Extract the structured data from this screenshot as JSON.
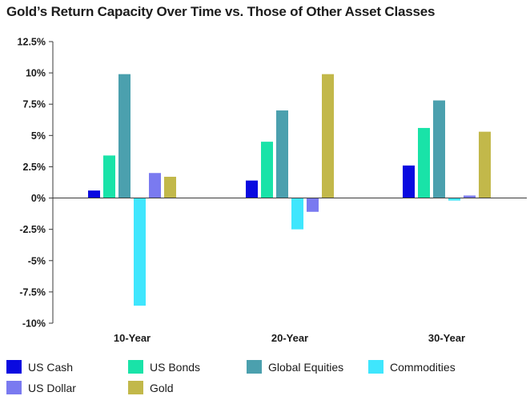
{
  "chart_data": {
    "type": "bar",
    "title": "Gold’s Return Capacity Over Time vs. Those of Other Asset Classes",
    "categories": [
      "10-Year",
      "20-Year",
      "30-Year"
    ],
    "ylim": [
      -10,
      12.5
    ],
    "yticks": [
      "12.5%",
      "10%",
      "7.5%",
      "5%",
      "2.5%",
      "0%",
      "-2.5%",
      "-5%",
      "-7.5%",
      "-10%"
    ],
    "ytick_values": [
      12.5,
      10,
      7.5,
      5,
      2.5,
      0,
      -2.5,
      -5,
      -7.5,
      -10
    ],
    "grid": false,
    "legend_position": "bottom",
    "series": [
      {
        "name": "US Cash",
        "color": "#0a0ae0",
        "values": [
          0.6,
          1.4,
          2.6
        ]
      },
      {
        "name": "US Bonds",
        "color": "#19e3a8",
        "values": [
          3.4,
          4.5,
          5.6
        ]
      },
      {
        "name": "Global Equities",
        "color": "#4ba0ae",
        "values": [
          9.9,
          7.0,
          7.8
        ]
      },
      {
        "name": "Commodities",
        "color": "#3fe6fd",
        "values": [
          -8.6,
          -2.5,
          -0.2
        ]
      },
      {
        "name": "US Dollar",
        "color": "#7a7af0",
        "values": [
          2.0,
          -1.1,
          0.2
        ]
      },
      {
        "name": "Gold",
        "color": "#c2b84a",
        "values": [
          1.7,
          9.9,
          5.3
        ]
      }
    ]
  }
}
